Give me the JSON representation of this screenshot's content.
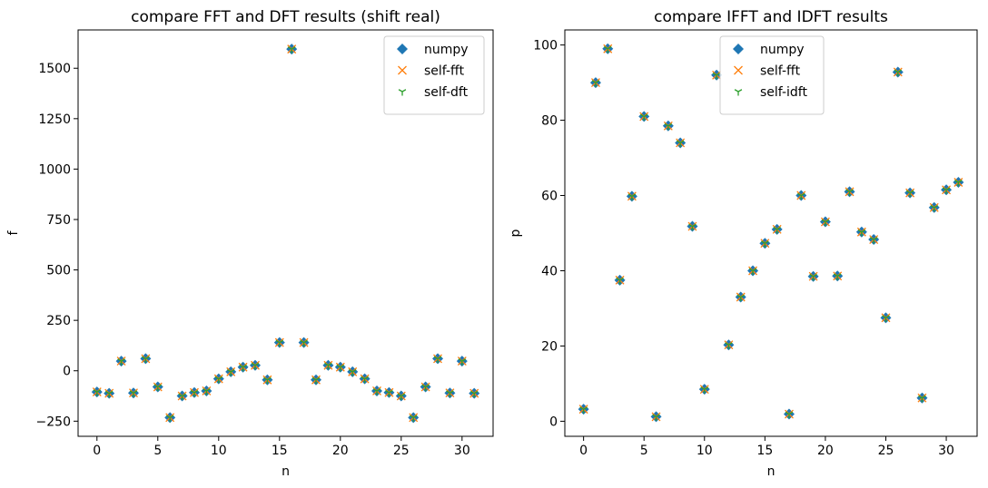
{
  "chart_data": [
    {
      "type": "scatter",
      "title": "compare FFT and DFT results (shift real)",
      "xlabel": "n",
      "ylabel": "f",
      "xlim": [
        -1.55,
        32.55
      ],
      "ylim": [
        -325,
        1690
      ],
      "xticks": [
        0,
        5,
        10,
        15,
        20,
        25,
        30
      ],
      "xtick_labels": [
        "0",
        "5",
        "10",
        "15",
        "20",
        "25",
        "30"
      ],
      "yticks": [
        -250,
        0,
        250,
        500,
        750,
        1000,
        1250,
        1500
      ],
      "ytick_labels": [
        "−250",
        "0",
        "250",
        "500",
        "750",
        "1000",
        "1250",
        "1500"
      ],
      "grid": false,
      "legend_position": "top-right",
      "x": [
        0,
        1,
        2,
        3,
        4,
        5,
        6,
        7,
        8,
        9,
        10,
        11,
        12,
        13,
        14,
        15,
        16,
        17,
        18,
        19,
        20,
        21,
        22,
        23,
        24,
        25,
        26,
        27,
        28,
        29,
        30,
        31
      ],
      "series": [
        {
          "name": "numpy",
          "marker": "diamond",
          "color": "#1f77b4",
          "values": [
            -105,
            -112,
            48,
            -110,
            60,
            -80,
            -232,
            -125,
            -108,
            -100,
            -40,
            -5,
            18,
            27,
            -45,
            140,
            1595,
            140,
            -45,
            27,
            18,
            -5,
            -40,
            -100,
            -108,
            -125,
            -232,
            -80,
            60,
            -110,
            48,
            -112
          ]
        },
        {
          "name": "self-fft",
          "marker": "x",
          "color": "#ff7f0e",
          "values": [
            -105,
            -112,
            48,
            -110,
            60,
            -80,
            -232,
            -125,
            -108,
            -100,
            -40,
            -5,
            18,
            27,
            -45,
            140,
            1595,
            140,
            -45,
            27,
            18,
            -5,
            -40,
            -100,
            -108,
            -125,
            -232,
            -80,
            60,
            -110,
            48,
            -112
          ]
        },
        {
          "name": "self-dft",
          "marker": "tri",
          "color": "#2ca02c",
          "values": [
            -105,
            -112,
            48,
            -110,
            60,
            -80,
            -232,
            -125,
            -108,
            -100,
            -40,
            -5,
            18,
            27,
            -45,
            140,
            1595,
            140,
            -45,
            27,
            18,
            -5,
            -40,
            -100,
            -108,
            -125,
            -232,
            -80,
            60,
            -110,
            48,
            -112
          ]
        }
      ]
    },
    {
      "type": "scatter",
      "title": "compare IFFT and IDFT results",
      "xlabel": "n",
      "ylabel": "p",
      "xlim": [
        -1.55,
        32.55
      ],
      "ylim": [
        -4,
        104
      ],
      "xticks": [
        0,
        5,
        10,
        15,
        20,
        25,
        30
      ],
      "xtick_labels": [
        "0",
        "5",
        "10",
        "15",
        "20",
        "25",
        "30"
      ],
      "yticks": [
        0,
        20,
        40,
        60,
        80,
        100
      ],
      "ytick_labels": [
        "0",
        "20",
        "40",
        "60",
        "80",
        "100"
      ],
      "grid": false,
      "legend_position": "top-center",
      "x": [
        0,
        1,
        2,
        3,
        4,
        5,
        6,
        7,
        8,
        9,
        10,
        11,
        12,
        13,
        14,
        15,
        16,
        17,
        18,
        19,
        20,
        21,
        22,
        23,
        24,
        25,
        26,
        27,
        28,
        29,
        30,
        31
      ],
      "series": [
        {
          "name": "numpy",
          "marker": "diamond",
          "color": "#1f77b4",
          "values": [
            3.2,
            90,
            99,
            37.5,
            59.8,
            81,
            1.2,
            78.5,
            74,
            51.8,
            8.5,
            92,
            20.3,
            33,
            40,
            47.3,
            51,
            1.9,
            60,
            38.5,
            53,
            38.6,
            61,
            50.3,
            48.3,
            27.5,
            92.8,
            60.7,
            6.2,
            56.8,
            61.5,
            63.5
          ]
        },
        {
          "name": "self-fft",
          "marker": "x",
          "color": "#ff7f0e",
          "values": [
            3.2,
            90,
            99,
            37.5,
            59.8,
            81,
            1.2,
            78.5,
            74,
            51.8,
            8.5,
            92,
            20.3,
            33,
            40,
            47.3,
            51,
            1.9,
            60,
            38.5,
            53,
            38.6,
            61,
            50.3,
            48.3,
            27.5,
            92.8,
            60.7,
            6.2,
            56.8,
            61.5,
            63.5
          ]
        },
        {
          "name": "self-idft",
          "marker": "tri",
          "color": "#2ca02c",
          "values": [
            3.2,
            90,
            99,
            37.5,
            59.8,
            81,
            1.2,
            78.5,
            74,
            51.8,
            8.5,
            92,
            20.3,
            33,
            40,
            47.3,
            51,
            1.9,
            60,
            38.5,
            53,
            38.6,
            61,
            50.3,
            48.3,
            27.5,
            92.8,
            60.7,
            6.2,
            56.8,
            61.5,
            63.5
          ]
        }
      ]
    }
  ]
}
